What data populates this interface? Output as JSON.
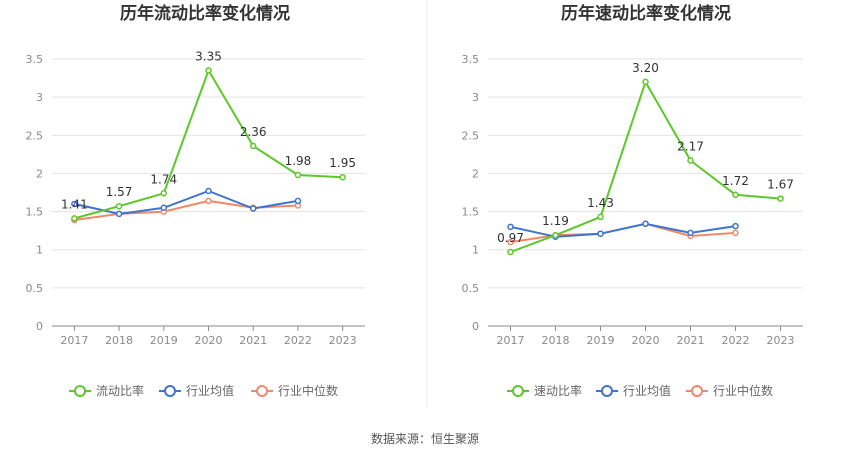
{
  "source": "数据来源：恒生聚源",
  "colors": {
    "company": "#5ec72b",
    "avg": "#3c74d0",
    "median": "#f0896a",
    "grid": "#e3e3e3",
    "axis": "#8a8a8a"
  },
  "chart_data": [
    {
      "type": "line",
      "title": "历年流动比率变化情况",
      "x": [
        "2017",
        "2018",
        "2019",
        "2020",
        "2021",
        "2022",
        "2023"
      ],
      "ylim": [
        0,
        3.5
      ],
      "yticks": [
        "0",
        "0.5",
        "1",
        "1.5",
        "2",
        "2.5",
        "3",
        "3.5"
      ],
      "grid": true,
      "legend_position": "bottom",
      "series": [
        {
          "name": "流动比率",
          "values": [
            1.41,
            1.57,
            1.74,
            3.35,
            2.36,
            1.98,
            1.95
          ],
          "labels": [
            "1.41",
            "1.57",
            "1.74",
            "3.35",
            "2.36",
            "1.98",
            "1.95"
          ]
        },
        {
          "name": "行业均值",
          "values": [
            1.6,
            1.47,
            1.55,
            1.77,
            1.54,
            1.64,
            null
          ]
        },
        {
          "name": "行业中位数",
          "values": [
            1.39,
            1.47,
            1.5,
            1.64,
            1.55,
            1.58,
            null
          ]
        }
      ]
    },
    {
      "type": "line",
      "title": "历年速动比率变化情况",
      "x": [
        "2017",
        "2018",
        "2019",
        "2020",
        "2021",
        "2022",
        "2023"
      ],
      "ylim": [
        0,
        3.5
      ],
      "yticks": [
        "0",
        "0.5",
        "1",
        "1.5",
        "2",
        "2.5",
        "3",
        "3.5"
      ],
      "grid": true,
      "legend_position": "bottom",
      "series": [
        {
          "name": "速动比率",
          "values": [
            0.97,
            1.19,
            1.43,
            3.2,
            2.17,
            1.72,
            1.67
          ],
          "labels": [
            "0.97",
            "1.19",
            "1.43",
            "3.20",
            "2.17",
            "1.72",
            "1.67"
          ]
        },
        {
          "name": "行业均值",
          "values": [
            1.3,
            1.17,
            1.21,
            1.34,
            1.22,
            1.31,
            null
          ]
        },
        {
          "name": "行业中位数",
          "values": [
            1.1,
            1.19,
            1.21,
            1.34,
            1.18,
            1.22,
            null
          ]
        }
      ]
    }
  ]
}
